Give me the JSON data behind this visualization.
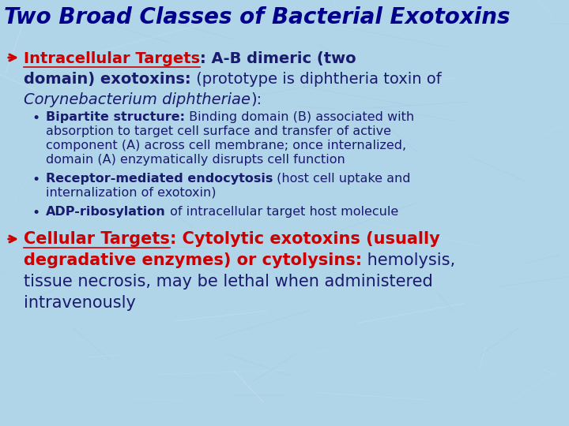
{
  "background_color": "#b0d4e8",
  "title": "Two Broad Classes of Bacterial Exotoxins",
  "title_color": "#00008B",
  "title_fontsize": 20,
  "section1_label": "Intracellular Targets",
  "section1_rest1": ": A-B dimeric (two",
  "section1_line2_bold": "domain) exotoxins:",
  "section1_line2_rest": " (prototype is diphtheria toxin of",
  "section1_line3_italic": "Corynebacterium diphtheriae",
  "section1_line3_rest": "):",
  "label_color": "#cc0000",
  "dark_blue": "#1a1a6e",
  "bullet_bold1": "Bipartite structure:",
  "bullet1_rest": " Binding domain (B) associated with",
  "bullet1_line2": "absorption to target cell surface and transfer of active",
  "bullet1_line3": "component (A) across cell membrane; once internalized,",
  "bullet1_line4": "domain (A) enzymatically disrupts cell function",
  "bullet_bold2": "Receptor-mediated endocytosis",
  "bullet2_rest": " (host cell uptake and",
  "bullet2_line2": "internalization of exotoxin)",
  "bullet_bold3": "ADP-ribosylation",
  "bullet3_rest": " of intracellular target host molecule",
  "section2_label": "Cellular Targets",
  "section2_rest1": ": Cytolytic exotoxins (usually",
  "section2_line2_bold": "degradative enzymes) or cytolysins:",
  "section2_line2_rest": " hemolysis,",
  "section2_line3": "tissue necrosis, may be lethal when administered",
  "section2_line4": "intravenously",
  "fs_header": 14,
  "fs_bullet": 11.5,
  "fs_s2": 15
}
